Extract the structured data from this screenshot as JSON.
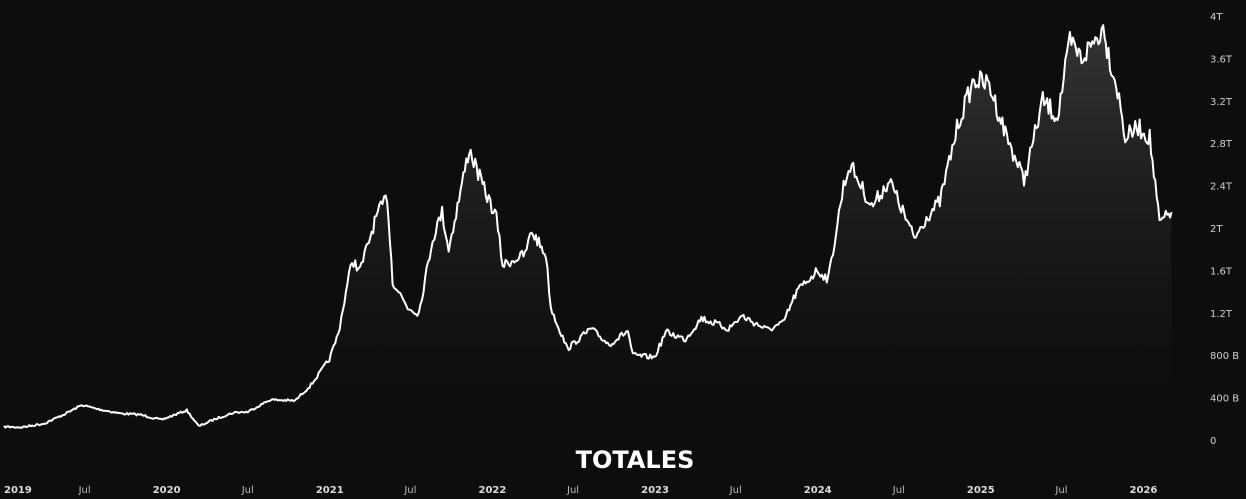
{
  "chart_data": {
    "type": "area",
    "title": "TOTALES",
    "colors": {
      "background": "#0d0d0d",
      "line": "#ffffff",
      "fill_top": "#3a3a3a",
      "text": "#d0d0d0"
    },
    "grid": false,
    "legend": "none",
    "xlim": [
      "2019-01-01",
      "2026-03-15"
    ],
    "ylim": [
      0,
      4000000000000
    ],
    "y_ticks": [
      {
        "value": 0,
        "label": "0"
      },
      {
        "value": 400000000000,
        "label": "400 B"
      },
      {
        "value": 800000000000,
        "label": "800 B"
      },
      {
        "value": 1200000000000,
        "label": "1.2T"
      },
      {
        "value": 1600000000000,
        "label": "1.6T"
      },
      {
        "value": 2000000000000,
        "label": "2T"
      },
      {
        "value": 2400000000000,
        "label": "2.4T"
      },
      {
        "value": 2800000000000,
        "label": "2.8T"
      },
      {
        "value": 3200000000000,
        "label": "3.2T"
      },
      {
        "value": 3600000000000,
        "label": "3.6T"
      },
      {
        "value": 4000000000000,
        "label": "4T"
      }
    ],
    "x_ticks": [
      {
        "date": "2019-01-01",
        "label": "2019",
        "bold": true
      },
      {
        "date": "2019-07-01",
        "label": "Jul",
        "bold": false
      },
      {
        "date": "2020-01-01",
        "label": "2020",
        "bold": true
      },
      {
        "date": "2020-07-01",
        "label": "Jul",
        "bold": false
      },
      {
        "date": "2021-01-01",
        "label": "2021",
        "bold": true
      },
      {
        "date": "2021-07-01",
        "label": "Jul",
        "bold": false
      },
      {
        "date": "2022-01-01",
        "label": "2022",
        "bold": true
      },
      {
        "date": "2022-07-01",
        "label": "Jul",
        "bold": false
      },
      {
        "date": "2023-01-01",
        "label": "2023",
        "bold": true
      },
      {
        "date": "2023-07-01",
        "label": "Jul",
        "bold": false
      },
      {
        "date": "2024-01-01",
        "label": "2024",
        "bold": true
      },
      {
        "date": "2024-07-01",
        "label": "Jul",
        "bold": false
      },
      {
        "date": "2025-01-01",
        "label": "2025",
        "bold": true
      },
      {
        "date": "2025-07-01",
        "label": "Jul",
        "bold": false
      },
      {
        "date": "2026-01-01",
        "label": "2026",
        "bold": true
      }
    ],
    "series": [
      {
        "points": [
          [
            "2019-01-01",
            125000000000
          ],
          [
            "2019-02-10",
            120000000000
          ],
          [
            "2019-04-01",
            155000000000
          ],
          [
            "2019-05-15",
            240000000000
          ],
          [
            "2019-06-25",
            330000000000
          ],
          [
            "2019-08-01",
            290000000000
          ],
          [
            "2019-09-20",
            250000000000
          ],
          [
            "2019-11-01",
            240000000000
          ],
          [
            "2019-12-20",
            190000000000
          ],
          [
            "2020-02-15",
            280000000000
          ],
          [
            "2020-03-13",
            130000000000
          ],
          [
            "2020-04-20",
            200000000000
          ],
          [
            "2020-06-01",
            260000000000
          ],
          [
            "2020-07-01",
            265000000000
          ],
          [
            "2020-08-20",
            380000000000
          ],
          [
            "2020-10-15",
            370000000000
          ],
          [
            "2020-11-20",
            520000000000
          ],
          [
            "2020-12-31",
            760000000000
          ],
          [
            "2021-01-20",
            1000000000000
          ],
          [
            "2021-02-20",
            1700000000000
          ],
          [
            "2021-03-10",
            1600000000000
          ],
          [
            "2021-04-15",
            2100000000000
          ],
          [
            "2021-05-10",
            2300000000000
          ],
          [
            "2021-05-22",
            1500000000000
          ],
          [
            "2021-06-25",
            1250000000000
          ],
          [
            "2021-07-20",
            1200000000000
          ],
          [
            "2021-08-20",
            1900000000000
          ],
          [
            "2021-09-10",
            2150000000000
          ],
          [
            "2021-09-25",
            1800000000000
          ],
          [
            "2021-11-10",
            2750000000000
          ],
          [
            "2021-12-10",
            2400000000000
          ],
          [
            "2022-01-10",
            2100000000000
          ],
          [
            "2022-01-24",
            1650000000000
          ],
          [
            "2022-03-15",
            1750000000000
          ],
          [
            "2022-03-30",
            1970000000000
          ],
          [
            "2022-05-01",
            1750000000000
          ],
          [
            "2022-05-12",
            1250000000000
          ],
          [
            "2022-06-18",
            860000000000
          ],
          [
            "2022-08-10",
            1050000000000
          ],
          [
            "2022-09-20",
            900000000000
          ],
          [
            "2022-11-01",
            1030000000000
          ],
          [
            "2022-11-12",
            800000000000
          ],
          [
            "2022-12-31",
            780000000000
          ],
          [
            "2023-01-25",
            1020000000000
          ],
          [
            "2023-03-10",
            950000000000
          ],
          [
            "2023-04-15",
            1150000000000
          ],
          [
            "2023-06-15",
            1050000000000
          ],
          [
            "2023-07-15",
            1170000000000
          ],
          [
            "2023-09-10",
            1040000000000
          ],
          [
            "2023-10-15",
            1100000000000
          ],
          [
            "2023-11-15",
            1400000000000
          ],
          [
            "2023-12-31",
            1600000000000
          ],
          [
            "2024-01-25",
            1520000000000
          ],
          [
            "2024-02-28",
            2400000000000
          ],
          [
            "2024-03-14",
            2600000000000
          ],
          [
            "2024-05-01",
            2200000000000
          ],
          [
            "2024-06-10",
            2450000000000
          ],
          [
            "2024-08-05",
            1900000000000
          ],
          [
            "2024-09-01",
            2100000000000
          ],
          [
            "2024-10-01",
            2250000000000
          ],
          [
            "2024-11-12",
            3000000000000
          ],
          [
            "2024-12-17",
            3400000000000
          ],
          [
            "2025-01-20",
            3350000000000
          ],
          [
            "2025-02-25",
            2900000000000
          ],
          [
            "2025-04-08",
            2450000000000
          ],
          [
            "2025-05-20",
            3200000000000
          ],
          [
            "2025-06-22",
            3050000000000
          ],
          [
            "2025-07-20",
            3750000000000
          ],
          [
            "2025-08-15",
            3600000000000
          ],
          [
            "2025-10-06",
            3900000000000
          ],
          [
            "2025-10-11",
            3700000000000
          ],
          [
            "2025-11-04",
            3300000000000
          ],
          [
            "2025-11-21",
            2850000000000
          ],
          [
            "2025-12-20",
            2950000000000
          ],
          [
            "2026-01-15",
            2850000000000
          ],
          [
            "2026-02-06",
            2050000000000
          ],
          [
            "2026-02-20",
            2100000000000
          ],
          [
            "2026-03-05",
            2150000000000
          ]
        ]
      }
    ]
  }
}
